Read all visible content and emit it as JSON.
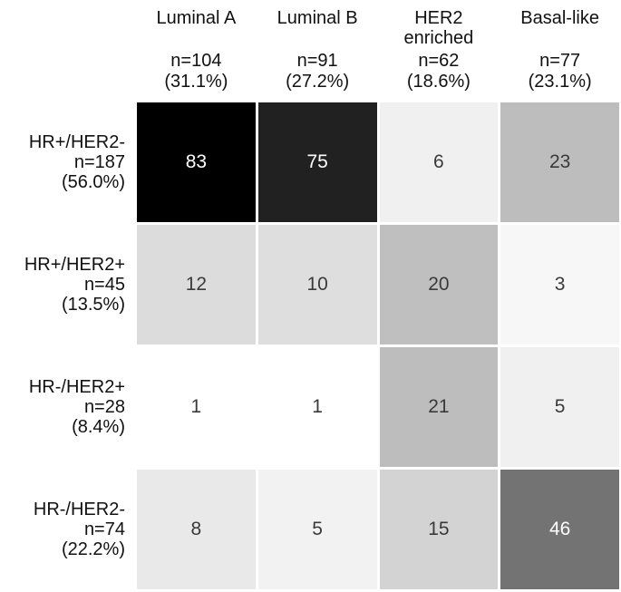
{
  "chart_data": {
    "type": "heatmap",
    "title": "",
    "xlabel": "",
    "ylabel": "",
    "legend": "none",
    "grid": false,
    "columns": [
      {
        "name": "Luminal A",
        "n": "n=104",
        "pct": "(31.1%)"
      },
      {
        "name": "Luminal B",
        "n": "n=91",
        "pct": "(27.2%)"
      },
      {
        "name": "HER2\nenriched",
        "n": "n=62",
        "pct": "(18.6%)"
      },
      {
        "name": "Basal-like",
        "n": "n=77",
        "pct": "(23.1%)"
      }
    ],
    "rows": [
      {
        "name": "HR+/HER2-",
        "n": "n=187",
        "pct": "(56.0%)"
      },
      {
        "name": "HR+/HER2+",
        "n": "n=45",
        "pct": "(13.5%)"
      },
      {
        "name": "HR-/HER2+",
        "n": "n=28",
        "pct": "(8.4%)"
      },
      {
        "name": "HR-/HER2-",
        "n": "n=74",
        "pct": "(22.2%)"
      }
    ],
    "values": [
      [
        83,
        75,
        6,
        23
      ],
      [
        12,
        10,
        20,
        3
      ],
      [
        1,
        1,
        21,
        5
      ],
      [
        8,
        5,
        15,
        46
      ]
    ],
    "cell_colors": [
      [
        "#000000",
        "#212121",
        "#f0f0f0",
        "#bdbdbd"
      ],
      [
        "#dcdcdc",
        "#dedede",
        "#bfbfbf",
        "#f7f7f7"
      ],
      [
        "#ffffff",
        "#ffffff",
        "#bdbdbd",
        "#f0f0f0"
      ],
      [
        "#e9e9e9",
        "#f2f2f2",
        "#d3d3d3",
        "#737373"
      ]
    ],
    "cell_text_colors": [
      [
        "#ffffff",
        "#ffffff",
        "#3a3a3a",
        "#3a3a3a"
      ],
      [
        "#3a3a3a",
        "#3a3a3a",
        "#3a3a3a",
        "#3a3a3a"
      ],
      [
        "#3a3a3a",
        "#3a3a3a",
        "#3a3a3a",
        "#3a3a3a"
      ],
      [
        "#3a3a3a",
        "#3a3a3a",
        "#3a3a3a",
        "#ffffff"
      ]
    ]
  }
}
